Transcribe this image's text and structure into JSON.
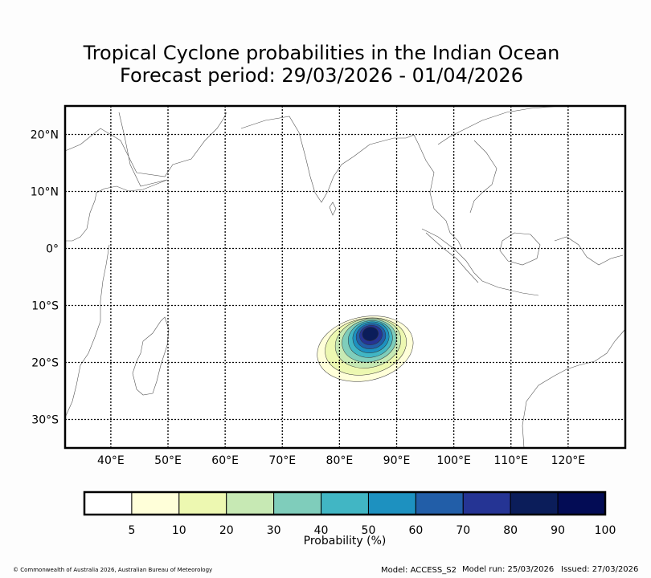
{
  "title": {
    "line1": "Tropical Cyclone probabilities in the Indian Ocean",
    "line2": "Forecast period: 29/03/2026 - 01/04/2026"
  },
  "map": {
    "region": "Indian Ocean",
    "lon_range": [
      32,
      130
    ],
    "lat_range": [
      -35,
      25
    ],
    "lon_ticks": [
      {
        "value": 40,
        "label": "40°E"
      },
      {
        "value": 50,
        "label": "50°E"
      },
      {
        "value": 60,
        "label": "60°E"
      },
      {
        "value": 70,
        "label": "70°E"
      },
      {
        "value": 80,
        "label": "80°E"
      },
      {
        "value": 90,
        "label": "90°E"
      },
      {
        "value": 100,
        "label": "100°E"
      },
      {
        "value": 110,
        "label": "110°E"
      },
      {
        "value": 120,
        "label": "120°E"
      }
    ],
    "lat_ticks": [
      {
        "value": 20,
        "label": "20°N"
      },
      {
        "value": 10,
        "label": "10°N"
      },
      {
        "value": 0,
        "label": "0°"
      },
      {
        "value": -10,
        "label": "10°S"
      },
      {
        "value": -20,
        "label": "20°S"
      },
      {
        "value": -30,
        "label": "30°S"
      }
    ],
    "probability_contours": [
      {
        "level": 5,
        "lon": 84.5,
        "lat": -17.6,
        "rx_deg": 8.5,
        "ry_deg": 5.6
      },
      {
        "level": 10,
        "lon": 84.6,
        "lat": -17.2,
        "rx_deg": 7.2,
        "ry_deg": 4.9
      },
      {
        "level": 20,
        "lon": 85.0,
        "lat": -16.6,
        "rx_deg": 5.8,
        "ry_deg": 4.3
      },
      {
        "level": 30,
        "lon": 85.2,
        "lat": -16.2,
        "rx_deg": 4.8,
        "ry_deg": 3.7
      },
      {
        "level": 40,
        "lon": 85.4,
        "lat": -15.9,
        "rx_deg": 3.9,
        "ry_deg": 3.2
      },
      {
        "level": 50,
        "lon": 85.5,
        "lat": -15.6,
        "rx_deg": 3.2,
        "ry_deg": 2.7
      },
      {
        "level": 60,
        "lon": 85.5,
        "lat": -15.4,
        "rx_deg": 2.6,
        "ry_deg": 2.2
      },
      {
        "level": 70,
        "lon": 85.5,
        "lat": -15.2,
        "rx_deg": 2.0,
        "ry_deg": 1.7
      },
      {
        "level": 80,
        "lon": 85.4,
        "lat": -15.0,
        "rx_deg": 1.4,
        "ry_deg": 1.2
      }
    ]
  },
  "legend": {
    "label": "Probability (%)",
    "ticks": [
      "5",
      "10",
      "20",
      "30",
      "40",
      "50",
      "60",
      "70",
      "80",
      "90",
      "100"
    ],
    "colors": [
      "#ffffff",
      "#ffffd9",
      "#edf8b1",
      "#c7e9b4",
      "#7fcdbb",
      "#41b6c4",
      "#1d91c0",
      "#225ea8",
      "#253494",
      "#0b1d5a",
      "#030c55"
    ]
  },
  "footer": {
    "copyright": "© Commonwealth of Australia 2026, Australian Bureau of Meteorology",
    "model": "Model: ACCESS_S2",
    "model_run": "Model run: 25/03/2026",
    "issued": "Issued: 27/03/2026"
  }
}
